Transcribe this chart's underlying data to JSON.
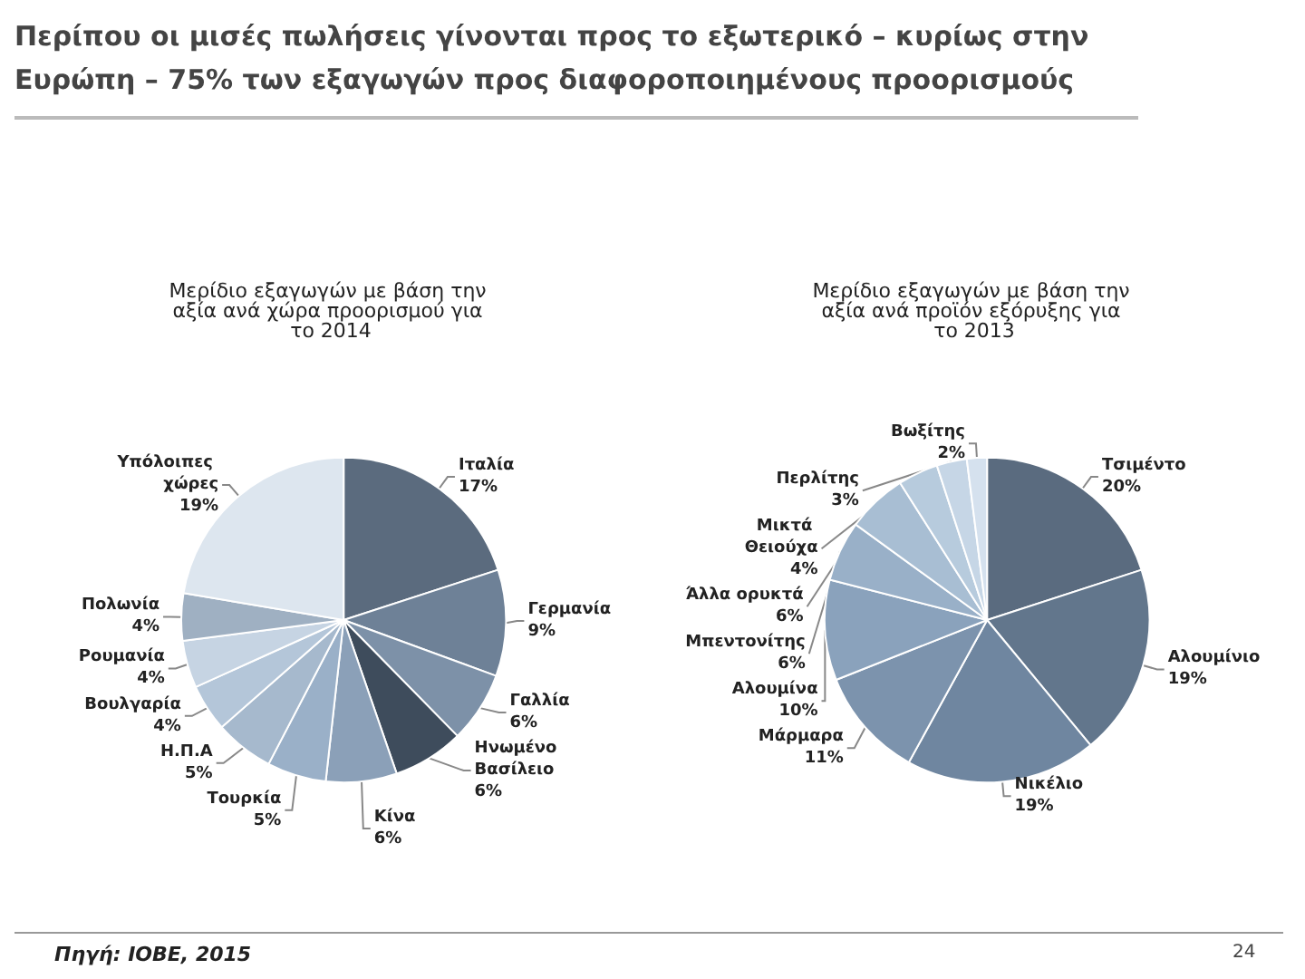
{
  "chart_data": [
    {
      "type": "pie",
      "title": "Μερίδιο εξαγωγών με βάση την αξία ανά χώρα προορισμού για το 2014",
      "annotations": [
        "Περίπου οι μισές πωλήσεις γίνονται προς το εξωτερικό – κυρίως στην Ευρώπη – 75% των εξαγωγών προς διαφοροποιημένους προορισμούς"
      ],
      "categories": [
        "Ιταλία",
        "Γερμανία",
        "Γαλλία",
        "Ηνωμένο Βασίλειο",
        "Κίνα",
        "Τουρκία",
        "Η.Π.Α",
        "Βουλγαρία",
        "Ρουμανία",
        "Πολωνία",
        "Υπόλοιπες χώρες"
      ],
      "values": [
        17,
        9,
        6,
        6,
        6,
        5,
        5,
        4,
        4,
        4,
        19
      ],
      "value_labels": [
        "17%",
        "9%",
        "6%",
        "6%",
        "6%",
        "5%",
        "5%",
        "4%",
        "4%",
        "4%",
        "19%"
      ],
      "colors": [
        "#5b6b7e",
        "#6e8197",
        "#7d91a8",
        "#3e4c5c",
        "#8ba0b8",
        "#9ab0c8",
        "#a6b9cd",
        "#b4c6d9",
        "#c6d4e3",
        "#9fb0c2",
        "#dde6ef"
      ]
    },
    {
      "type": "pie",
      "title": "Μερίδιο εξαγωγών με βάση την αξία ανά προϊόν εξόρυξης για το 2013",
      "annotations": [
        "Πηγή: ΙΟΒΕ, 2015",
        "24"
      ],
      "categories": [
        "Τσιμέντο",
        "Αλουμίνιο",
        "Νικέλιο",
        "Μάρμαρα",
        "Αλουμίνα",
        "Μπεντονίτης",
        "Άλλα ορυκτά",
        "Μικτά Θειούχα",
        "Περλίτης",
        "Βωξίτης"
      ],
      "values": [
        20,
        19,
        19,
        11,
        10,
        6,
        6,
        4,
        3,
        2
      ],
      "value_labels": [
        "20%",
        "19%",
        "19%",
        "11%",
        "10%",
        "6%",
        "6%",
        "4%",
        "3%",
        "2%"
      ],
      "colors": [
        "#5a6b7f",
        "#62768c",
        "#6f86a0",
        "#7c93ad",
        "#8aa2bc",
        "#99b0c8",
        "#a8bed3",
        "#b7cbdd",
        "#c6d6e6",
        "#d5e1ee"
      ]
    }
  ]
}
